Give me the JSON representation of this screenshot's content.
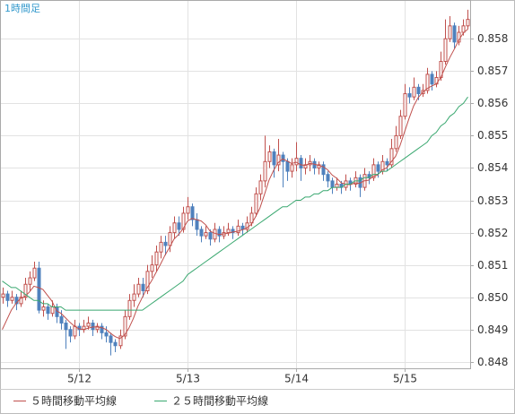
{
  "chart_data": {
    "type": "candlestick",
    "title": "1時間足",
    "categories": [
      null,
      null,
      null,
      null,
      null,
      null,
      null,
      null,
      null,
      null,
      null,
      null,
      null,
      null,
      null,
      null,
      null,
      "5/12",
      null,
      null,
      null,
      null,
      null,
      null,
      null,
      null,
      null,
      null,
      null,
      null,
      null,
      null,
      null,
      null,
      null,
      null,
      null,
      null,
      null,
      null,
      null,
      "5/13",
      null,
      null,
      null,
      null,
      null,
      null,
      null,
      null,
      null,
      null,
      null,
      null,
      null,
      null,
      null,
      null,
      null,
      null,
      null,
      null,
      null,
      null,
      null,
      "5/14",
      null,
      null,
      null,
      null,
      null,
      null,
      null,
      null,
      null,
      null,
      null,
      null,
      null,
      null,
      null,
      null,
      null,
      null,
      null,
      null,
      null,
      null,
      null,
      "5/15",
      null,
      null,
      null,
      null,
      null,
      null,
      null,
      null,
      null,
      null,
      null,
      null,
      null,
      null
    ],
    "ohlc": [
      [
        0.85,
        0.8503,
        0.8498,
        0.8501
      ],
      [
        0.8501,
        0.8502,
        0.8497,
        0.8499
      ],
      [
        0.8499,
        0.8502,
        0.8498,
        0.85
      ],
      [
        0.85,
        0.8501,
        0.8496,
        0.8498
      ],
      [
        0.8498,
        0.8502,
        0.8497,
        0.85
      ],
      [
        0.85,
        0.8506,
        0.8499,
        0.8504
      ],
      [
        0.8504,
        0.8508,
        0.8502,
        0.8506
      ],
      [
        0.8506,
        0.8511,
        0.8505,
        0.8509
      ],
      [
        0.8509,
        0.8511,
        0.8495,
        0.8496
      ],
      [
        0.8496,
        0.8499,
        0.8494,
        0.8497
      ],
      [
        0.8497,
        0.8498,
        0.8493,
        0.8495
      ],
      [
        0.8495,
        0.8499,
        0.8494,
        0.8497
      ],
      [
        0.8497,
        0.8498,
        0.8492,
        0.8494
      ],
      [
        0.8494,
        0.8496,
        0.849,
        0.8492
      ],
      [
        0.8492,
        0.8493,
        0.8484,
        0.849
      ],
      [
        0.849,
        0.8491,
        0.8486,
        0.8488
      ],
      [
        0.8488,
        0.8493,
        0.8487,
        0.8491
      ],
      [
        0.8491,
        0.8492,
        0.8488,
        0.849
      ],
      [
        0.849,
        0.8493,
        0.8489,
        0.8491
      ],
      [
        0.8491,
        0.8494,
        0.849,
        0.8492
      ],
      [
        0.8492,
        0.8493,
        0.8488,
        0.849
      ],
      [
        0.849,
        0.8492,
        0.8489,
        0.8491
      ],
      [
        0.8491,
        0.8492,
        0.8487,
        0.8489
      ],
      [
        0.8489,
        0.8491,
        0.8486,
        0.8488
      ],
      [
        0.8488,
        0.8489,
        0.8482,
        0.8486
      ],
      [
        0.8486,
        0.8487,
        0.8483,
        0.8485
      ],
      [
        0.8485,
        0.849,
        0.8484,
        0.8488
      ],
      [
        0.8488,
        0.8496,
        0.8487,
        0.8494
      ],
      [
        0.8494,
        0.8501,
        0.8493,
        0.8499
      ],
      [
        0.8499,
        0.8504,
        0.8497,
        0.8501
      ],
      [
        0.8501,
        0.8506,
        0.85,
        0.8504
      ],
      [
        0.8504,
        0.8506,
        0.85,
        0.8502
      ],
      [
        0.8502,
        0.851,
        0.8501,
        0.8508
      ],
      [
        0.8508,
        0.8513,
        0.8506,
        0.851
      ],
      [
        0.851,
        0.8516,
        0.8508,
        0.8514
      ],
      [
        0.8514,
        0.8519,
        0.8512,
        0.8517
      ],
      [
        0.8517,
        0.8519,
        0.8513,
        0.8516
      ],
      [
        0.8516,
        0.8522,
        0.8514,
        0.852
      ],
      [
        0.852,
        0.8525,
        0.8518,
        0.8523
      ],
      [
        0.8523,
        0.8525,
        0.8519,
        0.8521
      ],
      [
        0.8521,
        0.8528,
        0.852,
        0.8526
      ],
      [
        0.8526,
        0.8531,
        0.8524,
        0.8528
      ],
      [
        0.8528,
        0.8529,
        0.8522,
        0.8524
      ],
      [
        0.8524,
        0.8526,
        0.8519,
        0.8521
      ],
      [
        0.8521,
        0.8522,
        0.8517,
        0.8519
      ],
      [
        0.8519,
        0.8522,
        0.8518,
        0.852
      ],
      [
        0.852,
        0.8521,
        0.8516,
        0.8518
      ],
      [
        0.8518,
        0.8523,
        0.8517,
        0.8521
      ],
      [
        0.8521,
        0.8522,
        0.8517,
        0.8519
      ],
      [
        0.8519,
        0.8522,
        0.8518,
        0.852
      ],
      [
        0.852,
        0.8523,
        0.8519,
        0.8521
      ],
      [
        0.8521,
        0.8522,
        0.8518,
        0.852
      ],
      [
        0.852,
        0.8524,
        0.8519,
        0.8522
      ],
      [
        0.8522,
        0.8523,
        0.8519,
        0.8521
      ],
      [
        0.8521,
        0.8525,
        0.852,
        0.8523
      ],
      [
        0.8523,
        0.8528,
        0.8522,
        0.8526
      ],
      [
        0.8526,
        0.8534,
        0.8525,
        0.8532
      ],
      [
        0.8532,
        0.8538,
        0.853,
        0.8536
      ],
      [
        0.8536,
        0.855,
        0.8534,
        0.8542
      ],
      [
        0.8542,
        0.8547,
        0.854,
        0.8545
      ],
      [
        0.8545,
        0.8546,
        0.8537,
        0.8541
      ],
      [
        0.8541,
        0.8549,
        0.8539,
        0.8544
      ],
      [
        0.8544,
        0.8545,
        0.8534,
        0.8542
      ],
      [
        0.8542,
        0.8543,
        0.8536,
        0.8539
      ],
      [
        0.8539,
        0.8543,
        0.8537,
        0.8541
      ],
      [
        0.8541,
        0.8548,
        0.8539,
        0.8543
      ],
      [
        0.8543,
        0.8544,
        0.8536,
        0.854
      ],
      [
        0.854,
        0.8543,
        0.8538,
        0.8541
      ],
      [
        0.8541,
        0.8544,
        0.8539,
        0.8542
      ],
      [
        0.8542,
        0.8543,
        0.8538,
        0.854
      ],
      [
        0.854,
        0.8542,
        0.8538,
        0.8541
      ],
      [
        0.8541,
        0.8542,
        0.8536,
        0.8538
      ],
      [
        0.8538,
        0.8539,
        0.8534,
        0.8536
      ],
      [
        0.8536,
        0.8537,
        0.8532,
        0.8534
      ],
      [
        0.8534,
        0.8537,
        0.8533,
        0.8535
      ],
      [
        0.8535,
        0.8536,
        0.8532,
        0.8534
      ],
      [
        0.8534,
        0.8538,
        0.8533,
        0.8536
      ],
      [
        0.8536,
        0.8537,
        0.8533,
        0.8535
      ],
      [
        0.8535,
        0.8539,
        0.8534,
        0.8537
      ],
      [
        0.8537,
        0.8538,
        0.8531,
        0.8534
      ],
      [
        0.8534,
        0.854,
        0.8533,
        0.8538
      ],
      [
        0.8538,
        0.8539,
        0.8535,
        0.8537
      ],
      [
        0.8537,
        0.8543,
        0.8536,
        0.8541
      ],
      [
        0.8541,
        0.8542,
        0.8537,
        0.8539
      ],
      [
        0.8539,
        0.8544,
        0.8538,
        0.8542
      ],
      [
        0.8542,
        0.8543,
        0.8539,
        0.8541
      ],
      [
        0.8541,
        0.8549,
        0.854,
        0.8546
      ],
      [
        0.8546,
        0.8553,
        0.8545,
        0.855
      ],
      [
        0.855,
        0.8558,
        0.8549,
        0.8556
      ],
      [
        0.8556,
        0.8566,
        0.8555,
        0.8563
      ],
      [
        0.8563,
        0.8565,
        0.856,
        0.8562
      ],
      [
        0.8562,
        0.8568,
        0.8561,
        0.8565
      ],
      [
        0.8565,
        0.8566,
        0.8561,
        0.8563
      ],
      [
        0.8563,
        0.8566,
        0.8562,
        0.8564
      ],
      [
        0.8564,
        0.8571,
        0.8563,
        0.8569
      ],
      [
        0.8569,
        0.857,
        0.8564,
        0.8566
      ],
      [
        0.8566,
        0.857,
        0.8565,
        0.8568
      ],
      [
        0.8568,
        0.8576,
        0.8567,
        0.8573
      ],
      [
        0.8573,
        0.8586,
        0.8572,
        0.858
      ],
      [
        0.858,
        0.8587,
        0.8579,
        0.8584
      ],
      [
        0.8584,
        0.8585,
        0.8577,
        0.8579
      ],
      [
        0.8579,
        0.8584,
        0.8578,
        0.8582
      ],
      [
        0.8582,
        0.8586,
        0.8581,
        0.8584
      ],
      [
        0.8584,
        0.8589,
        0.8583,
        0.8586
      ]
    ],
    "up_color": "#c0504d",
    "down_color": "#4f81bd",
    "series": [
      {
        "name": "５時間移動平均線",
        "color": "#c0504d",
        "values": [
          0.849,
          0.8493,
          0.8496,
          0.8498,
          0.84996,
          0.85002,
          0.85016,
          0.85034,
          0.8503,
          0.85024,
          0.85006,
          0.84988,
          0.84958,
          0.8495,
          0.84936,
          0.84922,
          0.8491,
          0.84902,
          0.849,
          0.84904,
          0.84908,
          0.84908,
          0.84906,
          0.849,
          0.84888,
          0.84878,
          0.84872,
          0.84882,
          0.84904,
          0.84934,
          0.84972,
          0.85,
          0.85028,
          0.8505,
          0.85076,
          0.85102,
          0.8513,
          0.85154,
          0.8518,
          0.85194,
          0.85212,
          0.85236,
          0.85244,
          0.8524,
          0.85236,
          0.85224,
          0.85204,
          0.85198,
          0.85194,
          0.85196,
          0.85198,
          0.85202,
          0.85204,
          0.85208,
          0.85214,
          0.85224,
          0.85248,
          0.85276,
          0.85318,
          0.85362,
          0.85392,
          0.85416,
          0.85428,
          0.85422,
          0.85414,
          0.85418,
          0.8541,
          0.85408,
          0.85414,
          0.85412,
          0.85408,
          0.85404,
          0.85394,
          0.85378,
          0.85368,
          0.85354,
          0.8535,
          0.85348,
          0.85354,
          0.85352,
          0.8536,
          0.85362,
          0.85374,
          0.85378,
          0.85394,
          0.854,
          0.85418,
          0.85436,
          0.8547,
          0.85512,
          0.85554,
          0.85592,
          0.85618,
          0.85634,
          0.85646,
          0.85654,
          0.8566,
          0.8568,
          0.85712,
          0.85742,
          0.85768,
          0.85796,
          0.85818,
          0.8583
        ]
      },
      {
        "name": "２５時間移動平均線",
        "color": "#3aa870",
        "values": [
          0.8505,
          0.8504,
          0.8503,
          0.8503,
          0.8502,
          0.8501,
          0.85,
          0.8499,
          0.8499,
          0.8498,
          0.8498,
          0.8497,
          0.8497,
          0.8497,
          0.8496,
          0.8496,
          0.8496,
          0.8496,
          0.8496,
          0.8496,
          0.8496,
          0.8496,
          0.8496,
          0.8496,
          0.8496,
          0.8496,
          0.8496,
          0.8496,
          0.8496,
          0.8496,
          0.8496,
          0.8496,
          0.8497,
          0.8498,
          0.8499,
          0.85,
          0.8501,
          0.8502,
          0.8503,
          0.8504,
          0.8505,
          0.8507,
          0.8508,
          0.8509,
          0.851,
          0.8511,
          0.8512,
          0.8513,
          0.8514,
          0.8515,
          0.8516,
          0.8517,
          0.8518,
          0.8519,
          0.852,
          0.8521,
          0.8522,
          0.8523,
          0.8524,
          0.8525,
          0.8526,
          0.8527,
          0.8528,
          0.8528,
          0.8529,
          0.853,
          0.853,
          0.8531,
          0.8531,
          0.8532,
          0.8532,
          0.8533,
          0.8533,
          0.8534,
          0.8534,
          0.8534,
          0.8535,
          0.8535,
          0.8536,
          0.8536,
          0.8537,
          0.8537,
          0.8538,
          0.8538,
          0.8539,
          0.8539,
          0.854,
          0.8541,
          0.8542,
          0.8543,
          0.8544,
          0.8545,
          0.8546,
          0.8547,
          0.8548,
          0.855,
          0.8551,
          0.8553,
          0.8554,
          0.8556,
          0.8557,
          0.8559,
          0.856,
          0.8562
        ]
      }
    ],
    "ylim": [
      0.8478,
      0.8592
    ],
    "yticks": [
      0.848,
      0.849,
      {
        "value": 0.85,
        "label": "0.850"
      },
      0.851,
      0.852,
      0.853,
      0.854,
      0.855,
      0.856,
      0.857,
      0.858
    ],
    "grid": true
  }
}
